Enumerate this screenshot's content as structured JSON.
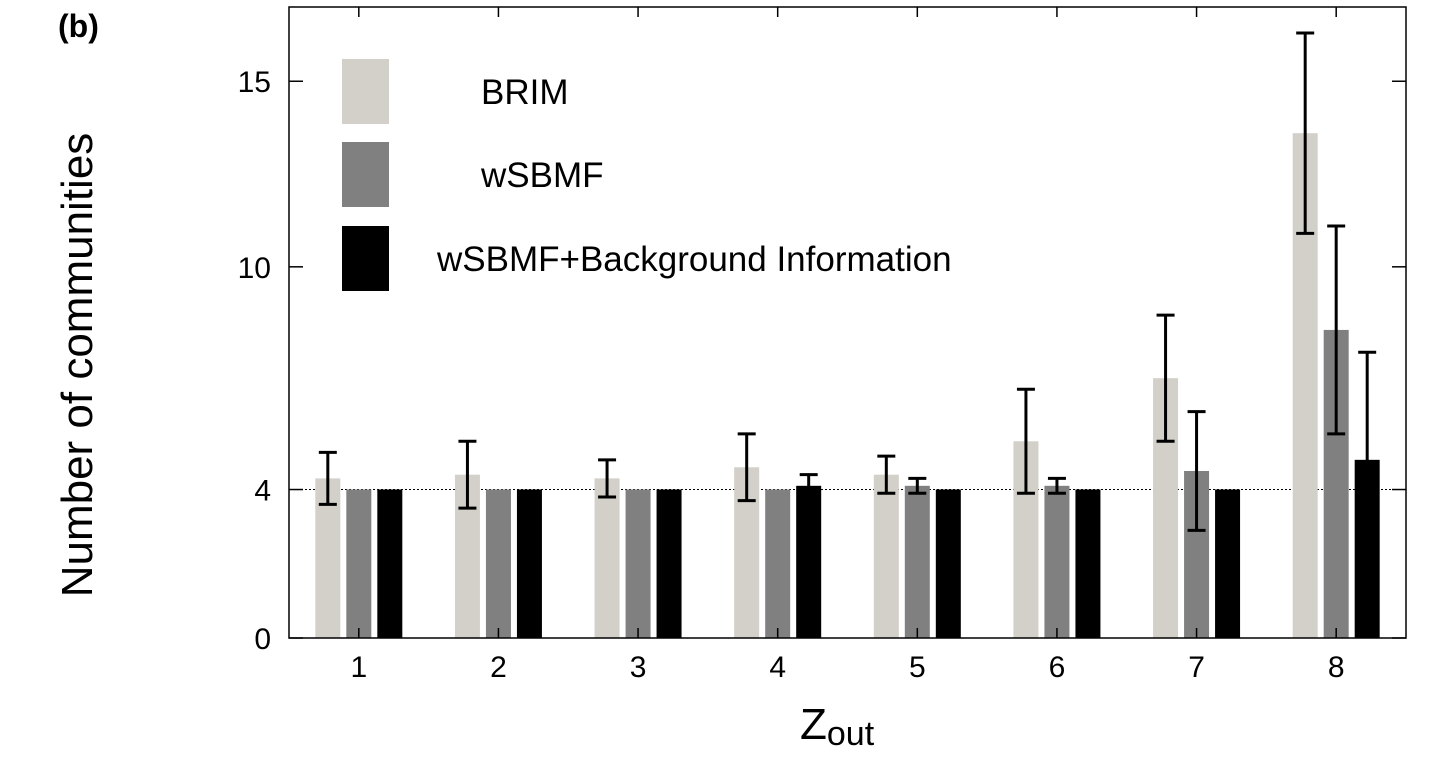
{
  "panel_label": "(b)",
  "chart_data": {
    "type": "bar",
    "categories": [
      "1",
      "2",
      "3",
      "4",
      "5",
      "6",
      "7",
      "8"
    ],
    "ylabel": "Number of communities",
    "xlabel_main": "Z",
    "xlabel_sub": "out",
    "ylim": [
      0,
      17
    ],
    "yticks": [
      0,
      4,
      10,
      15
    ],
    "reference_line": 4,
    "legend_position": "top-left",
    "grid": false,
    "series": [
      {
        "name": "BRIM",
        "color": "#d3d0c9",
        "values": [
          4.3,
          4.4,
          4.3,
          4.6,
          4.4,
          5.3,
          7.0,
          13.6
        ],
        "errors": [
          0.7,
          0.9,
          0.5,
          0.9,
          0.5,
          1.4,
          1.7,
          2.7
        ]
      },
      {
        "name": "wSBMF",
        "color": "#808080",
        "values": [
          4.0,
          4.0,
          4.0,
          4.0,
          4.1,
          4.1,
          4.5,
          8.3
        ],
        "errors": [
          0,
          0,
          0,
          0,
          0.2,
          0.2,
          1.6,
          2.8
        ]
      },
      {
        "name": "wSBMF+Background Information",
        "color": "#000000",
        "values": [
          4.0,
          4.0,
          4.0,
          4.1,
          4.0,
          4.0,
          4.0,
          4.8
        ],
        "errors": [
          0,
          0,
          0,
          0.3,
          0,
          0,
          0,
          2.9
        ]
      }
    ]
  }
}
